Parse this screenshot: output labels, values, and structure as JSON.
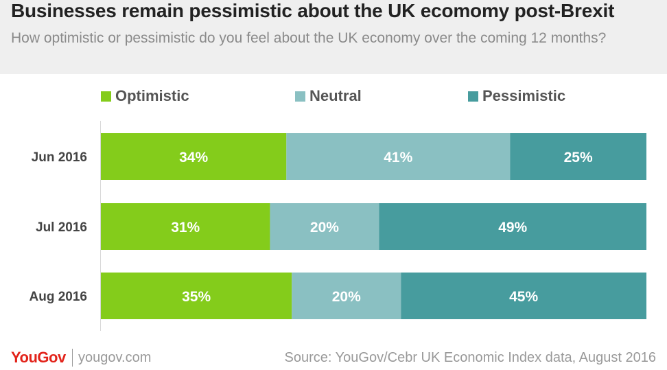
{
  "header": {
    "title": "Businesses remain pessimistic about the UK ecomomy post-Brexit",
    "subtitle": "How optimistic or pessimistic do you feel about the UK economy over the coming 12 months?"
  },
  "colors": {
    "optimistic": "#84cc1b",
    "neutral": "#8ac0c2",
    "pessimistic": "#479c9e"
  },
  "chart_data": {
    "type": "bar",
    "orientation": "horizontal",
    "stacked": true,
    "title": "Businesses remain pessimistic about the UK ecomomy post-Brexit",
    "subtitle": "How optimistic or pessimistic do you feel about the UK economy over the coming 12 months?",
    "xlabel": "",
    "ylabel": "",
    "xlim": [
      0,
      100
    ],
    "legend_position": "top",
    "grid": false,
    "categories": [
      "Jun 2016",
      "Jul 2016",
      "Aug 2016"
    ],
    "series": [
      {
        "name": "Optimistic",
        "values": [
          34,
          31,
          35
        ],
        "labels": [
          "34%",
          "31%",
          "35%"
        ],
        "color": "#84cc1b"
      },
      {
        "name": "Neutral",
        "values": [
          41,
          20,
          20
        ],
        "labels": [
          "41%",
          "20%",
          "20%"
        ],
        "color": "#8ac0c2"
      },
      {
        "name": "Pessimistic",
        "values": [
          25,
          49,
          45
        ],
        "labels": [
          "25%",
          "49%",
          "45%"
        ],
        "color": "#479c9e"
      }
    ]
  },
  "footer": {
    "logo": "YouGov",
    "site": "yougov.com",
    "source": "Source: YouGov/Cebr UK Economic Index data, August 2016"
  }
}
